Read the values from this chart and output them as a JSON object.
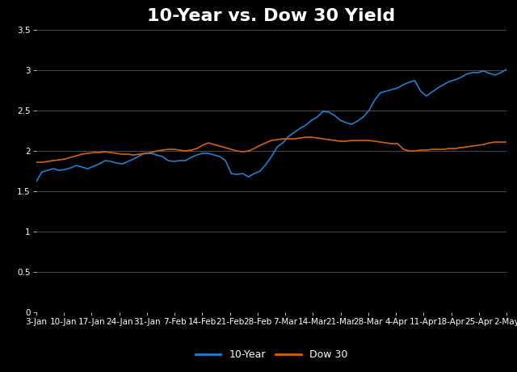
{
  "title": "10-Year vs. Dow 30 Yield",
  "background_color": "#000000",
  "text_color": "#ffffff",
  "grid_color": "#555555",
  "title_fontsize": 16,
  "tick_label_fontsize": 7.5,
  "legend_fontsize": 9,
  "ylim": [
    0,
    3.5
  ],
  "yticks": [
    0,
    0.5,
    1,
    1.5,
    2,
    2.5,
    3,
    3.5
  ],
  "x_labels": [
    "3-Jan",
    "10-Jan",
    "17-Jan",
    "24-Jan",
    "31-Jan",
    "7-Feb",
    "14-Feb",
    "21-Feb",
    "28-Feb",
    "7-Mar",
    "14-Mar",
    "21-Mar",
    "28-Mar",
    "4-Apr",
    "11-Apr",
    "18-Apr",
    "25-Apr",
    "2-May"
  ],
  "ten_year": [
    1.62,
    1.74,
    1.76,
    1.78,
    1.76,
    1.77,
    1.79,
    1.82,
    1.8,
    1.78,
    1.81,
    1.84,
    1.88,
    1.87,
    1.85,
    1.84,
    1.87,
    1.9,
    1.94,
    1.97,
    1.97,
    1.95,
    1.93,
    1.88,
    1.87,
    1.88,
    1.88,
    1.92,
    1.95,
    1.97,
    1.97,
    1.95,
    1.93,
    1.88,
    1.72,
    1.71,
    1.72,
    1.68,
    1.72,
    1.75,
    1.83,
    1.93,
    2.05,
    2.1,
    2.18,
    2.23,
    2.28,
    2.32,
    2.38,
    2.42,
    2.49,
    2.48,
    2.44,
    2.38,
    2.35,
    2.33,
    2.37,
    2.42,
    2.5,
    2.63,
    2.72,
    2.74,
    2.76,
    2.78,
    2.82,
    2.85,
    2.87,
    2.74,
    2.68,
    2.73,
    2.78,
    2.82,
    2.86,
    2.88,
    2.91,
    2.95,
    2.97,
    2.97,
    2.99,
    2.96,
    2.94,
    2.97,
    3.01
  ],
  "dow30": [
    1.86,
    1.86,
    1.87,
    1.88,
    1.89,
    1.9,
    1.92,
    1.94,
    1.96,
    1.97,
    1.98,
    1.98,
    1.99,
    1.98,
    1.97,
    1.96,
    1.96,
    1.95,
    1.96,
    1.97,
    1.98,
    2.0,
    2.01,
    2.02,
    2.02,
    2.01,
    2.0,
    2.01,
    2.03,
    2.07,
    2.1,
    2.08,
    2.06,
    2.04,
    2.02,
    2.0,
    1.99,
    2.0,
    2.03,
    2.07,
    2.1,
    2.13,
    2.14,
    2.15,
    2.15,
    2.15,
    2.16,
    2.17,
    2.17,
    2.16,
    2.15,
    2.14,
    2.13,
    2.12,
    2.12,
    2.13,
    2.13,
    2.13,
    2.13,
    2.12,
    2.11,
    2.1,
    2.09,
    2.09,
    2.02,
    2.0,
    2.0,
    2.01,
    2.01,
    2.02,
    2.02,
    2.02,
    2.03,
    2.03,
    2.04,
    2.05,
    2.06,
    2.07,
    2.08,
    2.1,
    2.11,
    2.11,
    2.11
  ],
  "line_color_10year": "#1e7fd4",
  "line_color_dow30": "#d6610a",
  "line_width": 1.2
}
